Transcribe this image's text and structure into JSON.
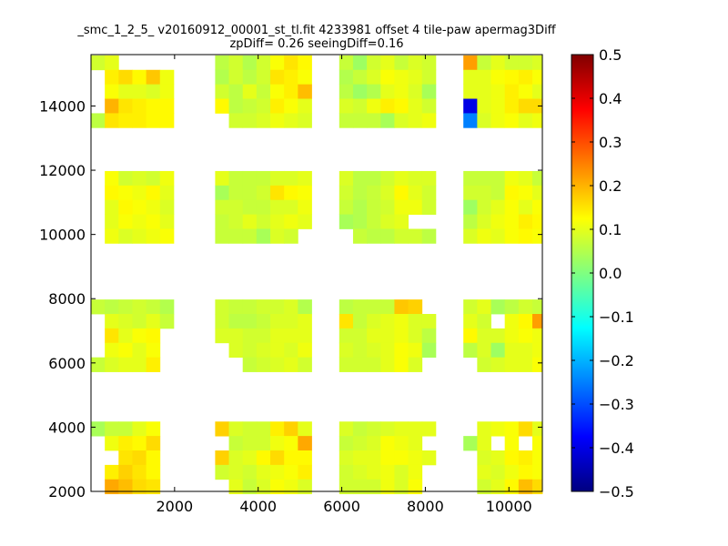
{
  "chart_data": {
    "type": "heatmap",
    "title_line1": "_smc_1_2_5_ v20160912_00001_st_tl.fit 4233981 offset 4 tile-paw apermag3Diff",
    "title_line2": "zpDiff= 0.26 seeingDiff=0.16",
    "xlabel": "",
    "ylabel": "",
    "xlim": [
      0,
      10800
    ],
    "ylim": [
      2000,
      15600
    ],
    "x_ticks": [
      2000,
      4000,
      6000,
      8000,
      10000
    ],
    "y_ticks": [
      2000,
      4000,
      6000,
      8000,
      10000,
      12000,
      14000
    ],
    "x_tick_labels": [
      "2000",
      "4000",
      "6000",
      "8000",
      "10000"
    ],
    "y_tick_labels": [
      "2000",
      "4000",
      "6000",
      "8000",
      "10000",
      "12000",
      "14000"
    ],
    "colorbar": {
      "colormap": "jet",
      "vmin": -0.5,
      "vmax": 0.5,
      "ticks": [
        0.5,
        0.4,
        0.3,
        0.2,
        0.1,
        0.0,
        -0.1,
        -0.2,
        -0.3,
        -0.4,
        -0.5
      ],
      "tick_labels": [
        "0.5",
        "0.4",
        "0.3",
        "0.2",
        "0.1",
        "0.0",
        "−0.1",
        "−0.2",
        "−0.3",
        "−0.4",
        "−0.5"
      ]
    },
    "cell_size": [
      330,
      450
    ],
    "x_origin": 0,
    "y_origin": 2000,
    "grid": false,
    "cells_x0": [
      0,
      330,
      660,
      990,
      1320,
      1650,
      2970,
      3300,
      3630,
      3960,
      4290,
      4620,
      4950,
      5940,
      6270,
      6600,
      6930,
      7260,
      7590,
      7920,
      8910,
      9240,
      9570,
      9900,
      10230,
      10560
    ],
    "rows": [
      {
        "y": 15350,
        "vals": [
          0.08,
          0.1,
          null,
          null,
          null,
          null,
          0.06,
          0.08,
          0.05,
          0.08,
          0.12,
          0.15,
          0.13,
          0.07,
          0.03,
          0.08,
          0.1,
          0.07,
          0.09,
          0.08,
          0.22,
          0.07,
          0.1,
          0.08,
          0.08,
          0.09
        ]
      },
      {
        "y": 14900,
        "vals": [
          null,
          0.14,
          0.16,
          0.13,
          0.18,
          0.11,
          0.05,
          0.08,
          0.06,
          0.08,
          0.15,
          0.14,
          0.12,
          0.05,
          0.07,
          0.09,
          0.12,
          0.11,
          0.1,
          0.08,
          0.1,
          0.1,
          0.12,
          0.13,
          0.14,
          0.12
        ]
      },
      {
        "y": 14450,
        "vals": [
          null,
          0.12,
          0.1,
          0.1,
          0.09,
          0.11,
          0.08,
          0.06,
          0.1,
          0.07,
          0.12,
          0.14,
          0.19,
          0.06,
          0.03,
          0.05,
          0.1,
          0.11,
          0.09,
          0.04,
          0.1,
          0.1,
          0.11,
          0.14,
          0.12,
          0.1
        ]
      },
      {
        "y": 14000,
        "vals": [
          null,
          0.2,
          0.15,
          0.14,
          0.13,
          0.13,
          0.13,
          0.06,
          0.07,
          0.08,
          0.14,
          0.12,
          0.1,
          0.09,
          0.08,
          0.11,
          0.14,
          0.13,
          0.1,
          0.08,
          -0.4,
          0.1,
          0.11,
          0.14,
          0.16,
          0.16
        ]
      },
      {
        "y": 13550,
        "vals": [
          0.06,
          0.15,
          0.14,
          0.14,
          0.13,
          0.13,
          null,
          0.08,
          0.08,
          0.09,
          0.11,
          0.1,
          0.09,
          0.07,
          0.07,
          0.07,
          0.04,
          0.09,
          0.1,
          0.11,
          -0.25,
          0.09,
          0.11,
          0.12,
          0.1,
          0.11
        ]
      },
      {
        "y": 11750,
        "vals": [
          null,
          0.12,
          0.08,
          0.09,
          0.08,
          0.11,
          0.1,
          0.07,
          0.07,
          0.07,
          0.09,
          0.09,
          0.1,
          0.09,
          0.06,
          0.06,
          0.08,
          0.1,
          0.09,
          0.09,
          0.07,
          0.07,
          0.07,
          0.11,
          0.1,
          0.07
        ]
      },
      {
        "y": 11300,
        "vals": [
          null,
          0.13,
          0.12,
          0.11,
          0.13,
          0.1,
          0.04,
          0.07,
          0.07,
          0.08,
          0.15,
          0.13,
          0.12,
          0.08,
          0.06,
          0.07,
          0.09,
          0.13,
          0.1,
          0.08,
          0.08,
          0.08,
          0.07,
          0.13,
          0.12,
          0.1
        ]
      },
      {
        "y": 10850,
        "vals": [
          null,
          0.1,
          0.13,
          0.12,
          0.11,
          0.09,
          0.08,
          0.08,
          0.07,
          0.07,
          0.09,
          0.09,
          0.11,
          0.07,
          0.05,
          0.07,
          0.08,
          0.11,
          0.11,
          0.08,
          0.03,
          0.08,
          0.1,
          0.12,
          0.1,
          0.12
        ]
      },
      {
        "y": 10400,
        "vals": [
          null,
          0.1,
          0.12,
          0.11,
          0.12,
          0.1,
          0.07,
          0.08,
          0.1,
          0.08,
          0.1,
          0.11,
          0.1,
          0.04,
          0.05,
          0.07,
          0.09,
          0.1,
          null,
          null,
          0.06,
          0.09,
          0.11,
          0.12,
          0.14,
          0.13
        ]
      },
      {
        "y": 9950,
        "vals": [
          null,
          0.11,
          0.09,
          0.1,
          0.11,
          0.12,
          0.07,
          0.07,
          0.07,
          0.04,
          0.09,
          0.08,
          null,
          null,
          0.07,
          0.06,
          0.06,
          0.08,
          0.08,
          0.06,
          0.09,
          0.11,
          0.1,
          0.12,
          0.13,
          0.12
        ]
      },
      {
        "y": 7750,
        "vals": [
          0.07,
          0.06,
          0.07,
          0.08,
          0.07,
          0.05,
          0.08,
          0.07,
          0.07,
          0.08,
          0.08,
          0.09,
          0.05,
          0.06,
          0.07,
          0.07,
          0.07,
          0.18,
          0.17,
          null,
          0.08,
          0.1,
          0.04,
          0.06,
          0.08,
          0.07
        ]
      },
      {
        "y": 7300,
        "vals": [
          null,
          0.1,
          0.09,
          0.08,
          0.1,
          0.07,
          0.08,
          0.06,
          0.06,
          0.07,
          0.09,
          0.09,
          0.1,
          0.15,
          0.07,
          0.09,
          0.1,
          0.11,
          0.09,
          0.09,
          0.1,
          0.08,
          null,
          0.11,
          0.13,
          0.22
        ]
      },
      {
        "y": 6850,
        "vals": [
          null,
          0.15,
          0.1,
          0.12,
          0.13,
          null,
          0.09,
          0.09,
          0.08,
          0.08,
          0.1,
          0.1,
          0.1,
          0.08,
          0.08,
          0.1,
          0.1,
          0.11,
          0.09,
          0.06,
          0.13,
          0.09,
          0.09,
          0.11,
          0.12,
          0.11
        ]
      },
      {
        "y": 6400,
        "vals": [
          null,
          0.11,
          0.12,
          0.1,
          0.12,
          null,
          null,
          0.09,
          0.08,
          0.09,
          0.1,
          0.09,
          0.11,
          0.09,
          0.08,
          0.09,
          0.1,
          0.12,
          0.11,
          0.04,
          0.06,
          0.09,
          0.03,
          0.1,
          0.1,
          0.11
        ]
      },
      {
        "y": 5950,
        "vals": [
          0.07,
          0.09,
          0.1,
          0.1,
          0.14,
          null,
          null,
          null,
          0.07,
          0.08,
          0.09,
          0.1,
          0.08,
          0.08,
          0.08,
          0.08,
          0.1,
          0.12,
          0.09,
          null,
          null,
          0.08,
          0.09,
          0.1,
          0.1,
          0.12
        ]
      },
      {
        "y": 3950,
        "vals": [
          0.04,
          0.07,
          0.07,
          0.1,
          0.12,
          null,
          0.17,
          0.09,
          0.08,
          0.08,
          0.14,
          0.17,
          0.1,
          0.09,
          0.07,
          0.08,
          0.09,
          0.1,
          0.1,
          0.1,
          null,
          0.1,
          0.11,
          0.12,
          0.16,
          0.1
        ]
      },
      {
        "y": 3500,
        "vals": [
          null,
          0.11,
          0.14,
          0.13,
          0.16,
          null,
          null,
          0.07,
          0.08,
          0.08,
          0.11,
          0.12,
          0.21,
          0.07,
          0.08,
          0.09,
          0.12,
          0.11,
          0.1,
          null,
          0.04,
          0.1,
          null,
          0.12,
          null,
          0.12
        ]
      },
      {
        "y": 3050,
        "vals": [
          null,
          null,
          0.15,
          0.16,
          0.13,
          null,
          0.17,
          0.09,
          0.1,
          0.13,
          0.16,
          0.13,
          0.13,
          0.09,
          0.1,
          0.1,
          0.12,
          0.12,
          0.11,
          0.1,
          null,
          0.09,
          0.1,
          0.13,
          0.14,
          0.12
        ]
      },
      {
        "y": 2600,
        "vals": [
          null,
          0.14,
          0.17,
          0.15,
          0.13,
          null,
          0.08,
          0.09,
          0.08,
          0.1,
          0.11,
          0.12,
          0.14,
          0.08,
          0.09,
          0.1,
          0.11,
          0.09,
          0.11,
          null,
          null,
          0.1,
          0.09,
          0.11,
          0.13,
          0.12
        ]
      },
      {
        "y": 2150,
        "vals": [
          null,
          0.21,
          0.19,
          0.16,
          0.15,
          null,
          null,
          0.1,
          0.07,
          0.09,
          0.12,
          0.11,
          0.09,
          0.08,
          0.08,
          0.08,
          0.11,
          0.09,
          0.12,
          null,
          null,
          0.08,
          0.1,
          0.13,
          0.19,
          0.16
        ]
      }
    ]
  }
}
